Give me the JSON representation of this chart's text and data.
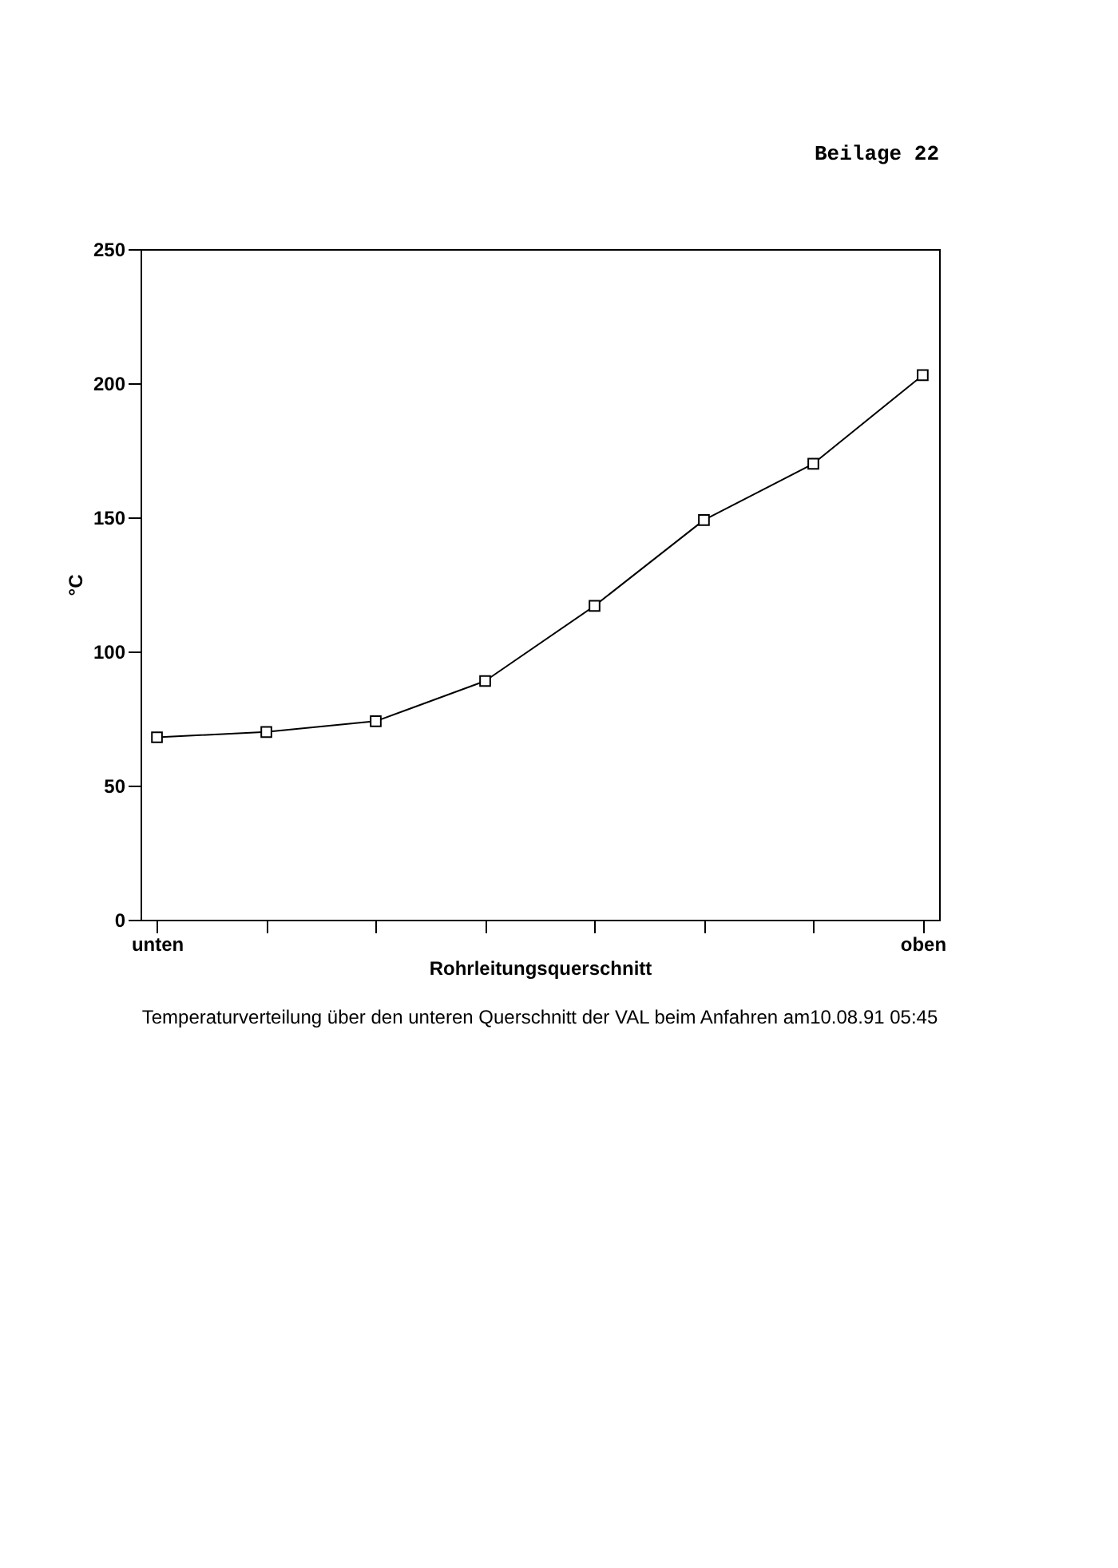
{
  "chart_data": {
    "type": "line",
    "title": "Temperaturverteilung über den unteren Querschnitt der VAL beim Anfahren am10.08.91 05:45",
    "xlabel": "Rohrleitungsquerschnitt",
    "ylabel": "°C",
    "annotations": [
      "Beilage 22"
    ],
    "categories": [
      "unten",
      null,
      null,
      null,
      null,
      null,
      null,
      "oben"
    ],
    "series": [
      {
        "color": "#000000",
        "values": [
          68,
          70,
          74,
          89,
          117,
          149,
          170,
          203
        ]
      }
    ],
    "ylim": [
      0,
      250
    ],
    "yticks": [
      0,
      50,
      100,
      150,
      200,
      250
    ],
    "grid": false,
    "marker": "square",
    "line_style": "solid"
  }
}
